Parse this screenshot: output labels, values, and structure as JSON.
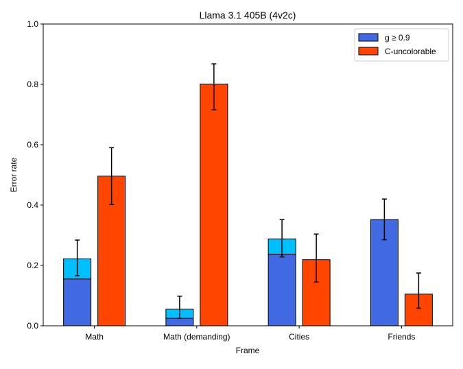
{
  "chart_data": {
    "type": "bar",
    "title": "Llama 3.1 405B (4v2c)",
    "xlabel": "Frame",
    "ylabel": "Error rate",
    "ylim": [
      0,
      1.0
    ],
    "yticks": [
      "0.0",
      "0.2",
      "0.4",
      "0.6",
      "0.8",
      "1.0"
    ],
    "categories": [
      "Math",
      "Math (demanding)",
      "Cities",
      "Friends"
    ],
    "grid": false,
    "legend_position": "top-right",
    "series": [
      {
        "name": "g ≥ 0.9",
        "color": "#4169e1",
        "values": [
          0.155,
          0.025,
          0.237,
          0.352
        ],
        "overlay_top": [
          0.222,
          0.055,
          0.288,
          0.352
        ],
        "overlay_color": "#00bfff",
        "error_low": [
          0.166,
          0.025,
          0.228,
          0.285
        ],
        "error_high": [
          0.284,
          0.098,
          0.352,
          0.42
        ]
      },
      {
        "name": "C-uncolorable",
        "color": "#ff4500",
        "values": [
          0.496,
          0.801,
          0.219,
          0.105
        ],
        "error_low": [
          0.402,
          0.716,
          0.145,
          0.058
        ],
        "error_high": [
          0.59,
          0.868,
          0.304,
          0.175
        ]
      }
    ]
  }
}
